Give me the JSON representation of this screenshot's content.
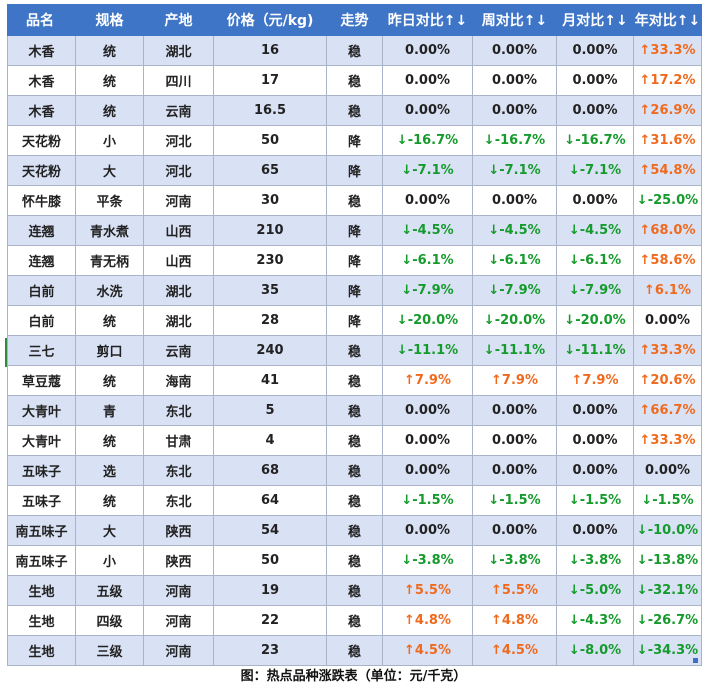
{
  "table": {
    "headers": [
      "品名",
      "规格",
      "产地",
      "价格（元/kg)",
      "走势",
      "昨日对比↑↓",
      "周对比↑↓",
      "月对比↑↓",
      "年对比↑↓"
    ],
    "rows": [
      [
        "木香",
        "统",
        "湖北",
        "16",
        "稳",
        "0.00%",
        "0.00%",
        "0.00%",
        "↑33.3%"
      ],
      [
        "木香",
        "统",
        "四川",
        "17",
        "稳",
        "0.00%",
        "0.00%",
        "0.00%",
        "↑17.2%"
      ],
      [
        "木香",
        "统",
        "云南",
        "16.5",
        "稳",
        "0.00%",
        "0.00%",
        "0.00%",
        "↑26.9%"
      ],
      [
        "天花粉",
        "小",
        "河北",
        "50",
        "降",
        "↓-16.7%",
        "↓-16.7%",
        "↓-16.7%",
        "↑31.6%"
      ],
      [
        "天花粉",
        "大",
        "河北",
        "65",
        "降",
        "↓-7.1%",
        "↓-7.1%",
        "↓-7.1%",
        "↑54.8%"
      ],
      [
        "怀牛膝",
        "平条",
        "河南",
        "30",
        "稳",
        "0.00%",
        "0.00%",
        "0.00%",
        "↓-25.0%"
      ],
      [
        "连翘",
        "青水煮",
        "山西",
        "210",
        "降",
        "↓-4.5%",
        "↓-4.5%",
        "↓-4.5%",
        "↑68.0%"
      ],
      [
        "连翘",
        "青无柄",
        "山西",
        "230",
        "降",
        "↓-6.1%",
        "↓-6.1%",
        "↓-6.1%",
        "↑58.6%"
      ],
      [
        "白前",
        "水洗",
        "湖北",
        "35",
        "降",
        "↓-7.9%",
        "↓-7.9%",
        "↓-7.9%",
        "↑6.1%"
      ],
      [
        "白前",
        "统",
        "湖北",
        "28",
        "降",
        "↓-20.0%",
        "↓-20.0%",
        "↓-20.0%",
        "0.00%"
      ],
      [
        "三七",
        "剪口",
        "云南",
        "240",
        "稳",
        "↓-11.1%",
        "↓-11.1%",
        "↓-11.1%",
        "↑33.3%"
      ],
      [
        "草豆蔻",
        "统",
        "海南",
        "41",
        "稳",
        "↑7.9%",
        "↑7.9%",
        "↑7.9%",
        "↑20.6%"
      ],
      [
        "大青叶",
        "青",
        "东北",
        "5",
        "稳",
        "0.00%",
        "0.00%",
        "0.00%",
        "↑66.7%"
      ],
      [
        "大青叶",
        "统",
        "甘肃",
        "4",
        "稳",
        "0.00%",
        "0.00%",
        "0.00%",
        "↑33.3%"
      ],
      [
        "五味子",
        "选",
        "东北",
        "68",
        "稳",
        "0.00%",
        "0.00%",
        "0.00%",
        "0.00%"
      ],
      [
        "五味子",
        "统",
        "东北",
        "64",
        "稳",
        "↓-1.5%",
        "↓-1.5%",
        "↓-1.5%",
        "↓-1.5%"
      ],
      [
        "南五味子",
        "大",
        "陕西",
        "54",
        "稳",
        "0.00%",
        "0.00%",
        "0.00%",
        "↓-10.0%"
      ],
      [
        "南五味子",
        "小",
        "陕西",
        "50",
        "稳",
        "↓-3.8%",
        "↓-3.8%",
        "↓-3.8%",
        "↓-13.8%"
      ],
      [
        "生地",
        "五级",
        "河南",
        "19",
        "稳",
        "↑5.5%",
        "↑5.5%",
        "↓-5.0%",
        "↓-32.1%"
      ],
      [
        "生地",
        "四级",
        "河南",
        "22",
        "稳",
        "↑4.8%",
        "↑4.8%",
        "↓-4.3%",
        "↓-26.7%"
      ],
      [
        "生地",
        "三级",
        "河南",
        "23",
        "稳",
        "↑4.5%",
        "↑4.5%",
        "↓-8.0%",
        "↓-34.3%"
      ]
    ]
  },
  "caption": "图：热点品种涨跌表（单位：元/千克）",
  "colors": {
    "header_bg": "#3e75c7",
    "row_alt_bg": "#d9e1f4",
    "up": "#f06a1e",
    "down": "#159a2c"
  }
}
